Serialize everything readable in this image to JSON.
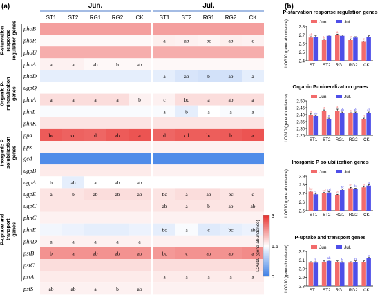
{
  "panel_a": {
    "panel_label": "(a)",
    "month_headers": [
      "Jun.",
      "Jul."
    ],
    "columns": [
      "ST1",
      "ST2",
      "RG1",
      "RG2",
      "CK"
    ],
    "groups": [
      {
        "name": "P-starvation response regulation genes",
        "lines": [
          "P-starvation",
          "response",
          "regulation genes"
        ],
        "rows": [
          0,
          2
        ]
      },
      {
        "name": "Organic P-mineralization genes",
        "lines": [
          "Organic P-",
          "mineralization",
          "genes"
        ],
        "rows": [
          3,
          8
        ]
      },
      {
        "name": "Inorganic P solubilization genes",
        "lines": [
          "Inorganic P",
          "solubilization",
          "genes"
        ],
        "rows": [
          9,
          12
        ]
      },
      {
        "name": "P-uptake and transport genes",
        "lines": [
          "P-uptake and",
          "transport",
          "genes"
        ],
        "rows": [
          13,
          21
        ]
      }
    ],
    "colorbar": {
      "label": "LOG10 (gene abundance)",
      "ticks": [
        "3",
        "1.5",
        "0"
      ],
      "min": 0,
      "max": 3,
      "colors": {
        "low": "#3d7fe6",
        "mid": "#ffffff",
        "high": "#e8322f"
      }
    }
  },
  "panel_b": {
    "panel_label": "(b)"
  },
  "chart_data": [
    {
      "type": "heatmap",
      "x_categories": [
        "ST1",
        "ST2",
        "RG1",
        "RG2",
        "CK"
      ],
      "months": [
        "Jun.",
        "Jul."
      ],
      "color_scale": {
        "min": 0,
        "max": 3,
        "label": "LOG10 (gene abundance)"
      },
      "rows": [
        {
          "gene": "phoB",
          "jun": [
            2.2,
            2.2,
            2.2,
            2.2,
            2.2
          ],
          "jul": [
            2.2,
            2.2,
            2.2,
            2.2,
            2.2
          ],
          "jun_labels": [
            "",
            "",
            "",
            "",
            ""
          ],
          "jul_labels": [
            "",
            "",
            "",
            "",
            ""
          ]
        },
        {
          "gene": "phoR",
          "jun": [
            1.55,
            1.55,
            1.55,
            1.55,
            1.55
          ],
          "jul": [
            1.62,
            1.6,
            1.58,
            1.62,
            1.6
          ],
          "jun_labels": [
            "",
            "",
            "",
            "",
            ""
          ],
          "jul_labels": [
            "a",
            "ab",
            "bc",
            "ab",
            "c"
          ]
        },
        {
          "gene": "phoU",
          "jun": [
            2.1,
            2.1,
            2.1,
            2.1,
            2.1
          ],
          "jul": [
            2.1,
            2.1,
            2.1,
            2.1,
            2.1
          ],
          "jun_labels": [
            "",
            "",
            "",
            "",
            ""
          ],
          "jul_labels": [
            "",
            "",
            "",
            "",
            ""
          ]
        },
        {
          "gene": "phoA",
          "jun": [
            1.6,
            1.6,
            1.55,
            1.55,
            1.55
          ],
          "jul": [
            1.55,
            1.55,
            1.55,
            1.55,
            1.55
          ],
          "jun_labels": [
            "a",
            "a",
            "ab",
            "b",
            "ab"
          ],
          "jul_labels": [
            "",
            "",
            "",
            "",
            ""
          ]
        },
        {
          "gene": "phoD",
          "jun": [
            1.3,
            1.3,
            1.3,
            1.3,
            1.3
          ],
          "jul": [
            1.3,
            1.2,
            1.15,
            1.15,
            1.3
          ],
          "jun_labels": [
            "",
            "",
            "",
            "",
            ""
          ],
          "jul_labels": [
            "a",
            "ab",
            "b",
            "ab",
            "a"
          ]
        },
        {
          "gene": "ugpQ",
          "jun": [
            1.5,
            1.5,
            1.5,
            1.5,
            1.5
          ],
          "jul": [
            1.5,
            1.5,
            1.5,
            1.5,
            1.5
          ],
          "jun_labels": [
            "",
            "",
            "",
            "",
            ""
          ],
          "jul_labels": [
            "",
            "",
            "",
            "",
            ""
          ]
        },
        {
          "gene": "phnA",
          "jun": [
            1.75,
            1.75,
            1.75,
            1.75,
            1.6
          ],
          "jul": [
            1.6,
            1.75,
            1.75,
            1.75,
            1.75
          ],
          "jun_labels": [
            "a",
            "a",
            "a",
            "a",
            "b"
          ],
          "jul_labels": [
            "c",
            "bc",
            "a",
            "ab",
            "a"
          ]
        },
        {
          "gene": "phnL",
          "jun": [
            1.45,
            1.45,
            1.45,
            1.45,
            1.45
          ],
          "jul": [
            1.45,
            1.3,
            1.5,
            1.45,
            1.45
          ],
          "jun_labels": [
            "",
            "",
            "",
            "",
            ""
          ],
          "jul_labels": [
            "a",
            "b",
            "a",
            "a",
            "a"
          ]
        },
        {
          "gene": "phnK",
          "jun": [
            1.7,
            1.7,
            1.7,
            1.7,
            1.7
          ],
          "jul": [
            1.7,
            1.7,
            1.7,
            1.7,
            1.7
          ],
          "jun_labels": [
            "",
            "",
            "",
            "",
            ""
          ],
          "jul_labels": [
            "",
            "",
            "",
            "",
            ""
          ]
        },
        {
          "gene": "ppa",
          "jun": [
            2.7,
            2.65,
            2.62,
            2.7,
            2.75
          ],
          "jul": [
            2.62,
            2.68,
            2.68,
            2.7,
            2.75
          ],
          "jun_labels": [
            "bc",
            "cd",
            "d",
            "ab",
            "a"
          ],
          "jul_labels": [
            "d",
            "cd",
            "bc",
            "b",
            "a"
          ]
        },
        {
          "gene": "ppx",
          "jun": [
            1.6,
            1.6,
            1.6,
            1.6,
            1.6
          ],
          "jul": [
            1.6,
            1.6,
            1.6,
            1.6,
            1.6
          ],
          "jun_labels": [
            "",
            "",
            "",
            "",
            ""
          ],
          "jul_labels": [
            "",
            "",
            "",
            "",
            ""
          ]
        },
        {
          "gene": "gcd",
          "jun": [
            0.15,
            0.15,
            0.15,
            0.15,
            0.15
          ],
          "jul": [
            0.15,
            0.15,
            0.15,
            0.15,
            0.15
          ],
          "jun_labels": [
            "",
            "",
            "",
            "",
            ""
          ],
          "jul_labels": [
            "",
            "",
            "",
            "",
            ""
          ]
        },
        {
          "gene": "ugpB",
          "jun": [
            1.65,
            1.65,
            1.65,
            1.65,
            1.65
          ],
          "jul": [
            1.6,
            1.6,
            1.6,
            1.6,
            1.6
          ],
          "jun_labels": [
            "",
            "",
            "",
            "",
            ""
          ],
          "jul_labels": [
            "",
            "",
            "",
            "",
            ""
          ]
        },
        {
          "gene": "ugpA",
          "jun": [
            1.5,
            1.3,
            1.5,
            1.5,
            1.5
          ],
          "jul": [
            1.5,
            1.5,
            1.5,
            1.5,
            1.5
          ],
          "jun_labels": [
            "b",
            "ab",
            "a",
            "ab",
            "ab"
          ],
          "jul_labels": [
            "",
            "",
            "",
            "",
            ""
          ]
        },
        {
          "gene": "ugpE",
          "jun": [
            1.7,
            1.7,
            1.75,
            1.75,
            1.75
          ],
          "jul": [
            1.7,
            1.75,
            1.75,
            1.7,
            1.7
          ],
          "jun_labels": [
            "a",
            "b",
            "ab",
            "ab",
            "ab"
          ],
          "jul_labels": [
            "bc",
            "a",
            "ab",
            "bc",
            "c"
          ]
        },
        {
          "gene": "ugpC",
          "jun": [
            1.7,
            1.7,
            1.7,
            1.7,
            1.7
          ],
          "jul": [
            1.7,
            1.7,
            1.7,
            1.7,
            1.7
          ],
          "jun_labels": [
            "",
            "",
            "",
            "",
            ""
          ],
          "jul_labels": [
            "ab",
            "a",
            "b",
            "ab",
            "ab"
          ]
        },
        {
          "gene": "phnC",
          "jun": [
            1.6,
            1.6,
            1.6,
            1.6,
            1.6
          ],
          "jul": [
            1.6,
            1.6,
            1.6,
            1.6,
            1.6
          ],
          "jun_labels": [
            "",
            "",
            "",
            "",
            ""
          ],
          "jul_labels": [
            "",
            "",
            "",
            "",
            ""
          ]
        },
        {
          "gene": "phnE",
          "jun": [
            1.4,
            1.35,
            1.3,
            1.3,
            1.35
          ],
          "jul": [
            1.3,
            1.45,
            1.25,
            1.3,
            1.35
          ],
          "jun_labels": [
            "",
            "",
            "",
            "",
            ""
          ],
          "jul_labels": [
            "bc",
            "a",
            "c",
            "bc",
            "ab"
          ]
        },
        {
          "gene": "phnD",
          "jun": [
            1.6,
            1.6,
            1.6,
            1.6,
            1.6
          ],
          "jul": [
            1.6,
            1.6,
            1.6,
            1.6,
            1.6
          ],
          "jun_labels": [
            "a",
            "a",
            "a",
            "a",
            "a"
          ],
          "jul_labels": [
            "",
            "",
            "",
            "",
            ""
          ]
        },
        {
          "gene": "pstB",
          "jun": [
            2.3,
            2.3,
            2.3,
            2.3,
            2.3
          ],
          "jul": [
            2.25,
            2.3,
            2.3,
            2.3,
            2.35
          ],
          "jun_labels": [
            "b",
            "a",
            "ab",
            "ab",
            "ab"
          ],
          "jul_labels": [
            "bc",
            "c",
            "ab",
            "ab",
            "a"
          ]
        },
        {
          "gene": "pstC",
          "jun": [
            1.75,
            1.75,
            1.75,
            1.75,
            1.75
          ],
          "jul": [
            1.75,
            1.75,
            1.75,
            1.75,
            1.75
          ],
          "jun_labels": [
            "",
            "",
            "",
            "",
            ""
          ],
          "jul_labels": [
            "",
            "",
            "",
            "",
            ""
          ]
        },
        {
          "gene": "pstA",
          "jun": [
            1.65,
            1.65,
            1.65,
            1.65,
            1.65
          ],
          "jul": [
            1.65,
            1.65,
            1.65,
            1.65,
            1.65
          ],
          "jun_labels": [
            "",
            "",
            "",
            "",
            ""
          ],
          "jul_labels": [
            "a",
            "a",
            "a",
            "a",
            "a"
          ]
        },
        {
          "gene": "pstS",
          "jun": [
            1.6,
            1.6,
            1.6,
            1.6,
            1.6
          ],
          "jul": [
            1.6,
            1.6,
            1.6,
            1.6,
            1.6
          ],
          "jun_labels": [
            "ab",
            "ab",
            "a",
            "b",
            "ab"
          ],
          "jul_labels": [
            "",
            "",
            "",
            "",
            ""
          ]
        }
      ]
    },
    {
      "type": "bar",
      "title": "P-starvation response regulation genes",
      "categories": [
        "ST1",
        "ST2",
        "RG1",
        "RG2",
        "CK"
      ],
      "ylabel": "LOG10 (gene abundance)",
      "ylim": [
        2.4,
        2.8
      ],
      "yticks": [
        "2.4",
        "2.5",
        "2.6",
        "2.7",
        "2.8"
      ],
      "series": [
        {
          "name": "Jun.",
          "color": "#f26b6b",
          "values": [
            2.67,
            2.64,
            2.7,
            2.64,
            2.62
          ],
          "errors": [
            0.01,
            0.01,
            0.01,
            0.015,
            0.01
          ],
          "letters": [
            "ab",
            "b",
            "a",
            "b",
            "c"
          ]
        },
        {
          "name": "Jul.",
          "color": "#4f4fe8",
          "values": [
            2.68,
            2.69,
            2.69,
            2.67,
            2.68
          ],
          "errors": [
            0.01,
            0.01,
            0.01,
            0.01,
            0.01
          ],
          "letters": [
            "",
            "",
            "",
            "",
            ""
          ]
        }
      ]
    },
    {
      "type": "bar",
      "title": "Organic P-mineralization genes",
      "categories": [
        "ST1",
        "ST2",
        "RG1",
        "RG2",
        "CK"
      ],
      "ylabel": "LOG10 (gene abundance)",
      "ylim": [
        2.25,
        2.5
      ],
      "yticks": [
        "2.25",
        "2.30",
        "2.35",
        "2.40",
        "2.45",
        "2.50"
      ],
      "series": [
        {
          "name": "Jun.",
          "color": "#f26b6b",
          "values": [
            2.4,
            2.43,
            2.43,
            2.41,
            2.37
          ],
          "errors": [
            0.01,
            0.005,
            0.01,
            0.005,
            0.005
          ],
          "letters": [
            "a",
            "a",
            "a",
            "a",
            "b"
          ]
        },
        {
          "name": "Jul.",
          "color": "#4f4fe8",
          "values": [
            2.39,
            2.37,
            2.41,
            2.41,
            2.41
          ],
          "errors": [
            0.005,
            0.005,
            0.01,
            0.01,
            0.01
          ],
          "letters": [
            "ab",
            "b",
            "ab",
            "ab",
            "ab"
          ]
        }
      ]
    },
    {
      "type": "bar",
      "title": "Inorganic P solubilization genes",
      "categories": [
        "ST1",
        "ST2",
        "RG1",
        "RG2",
        "CK"
      ],
      "ylabel": "LOG10 (gene abundance)",
      "ylim": [
        2.5,
        2.9
      ],
      "yticks": [
        "2.5",
        "2.6",
        "2.7",
        "2.8",
        "2.9"
      ],
      "series": [
        {
          "name": "Jun.",
          "color": "#f26b6b",
          "values": [
            2.72,
            2.7,
            2.68,
            2.76,
            2.77
          ],
          "errors": [
            0.01,
            0.01,
            0.01,
            0.01,
            0.01
          ],
          "letters": [
            "bc",
            "cd",
            "d",
            "ab",
            "a"
          ]
        },
        {
          "name": "Jul.",
          "color": "#4f4fe8",
          "values": [
            2.69,
            2.71,
            2.74,
            2.75,
            2.79
          ],
          "errors": [
            0.01,
            0.01,
            0.01,
            0.01,
            0.01
          ],
          "letters": [
            "d",
            "cd",
            "bc",
            "b",
            "a"
          ]
        }
      ]
    },
    {
      "type": "bar",
      "title": "P-uptake and transport genes",
      "categories": [
        "ST1",
        "ST2",
        "RG1",
        "RG2",
        "CK"
      ],
      "ylabel": "LOG10 (gene abundance)",
      "ylim": [
        2.8,
        3.2
      ],
      "yticks": [
        "2.8",
        "2.9",
        "3.0",
        "3.1",
        "3.2"
      ],
      "series": [
        {
          "name": "Jun.",
          "color": "#f26b6b",
          "values": [
            3.07,
            3.08,
            3.08,
            3.07,
            3.08
          ],
          "errors": [
            0.01,
            0.01,
            0.01,
            0.01,
            0.01
          ],
          "letters": [
            "",
            "",
            "",
            "",
            ""
          ]
        },
        {
          "name": "Jul.",
          "color": "#4f4fe8",
          "values": [
            3.07,
            3.09,
            3.07,
            3.08,
            3.12
          ],
          "errors": [
            0.01,
            0.01,
            0.01,
            0.01,
            0.01
          ],
          "letters": [
            "b",
            "ab",
            "b",
            "b",
            "a"
          ]
        }
      ]
    }
  ]
}
